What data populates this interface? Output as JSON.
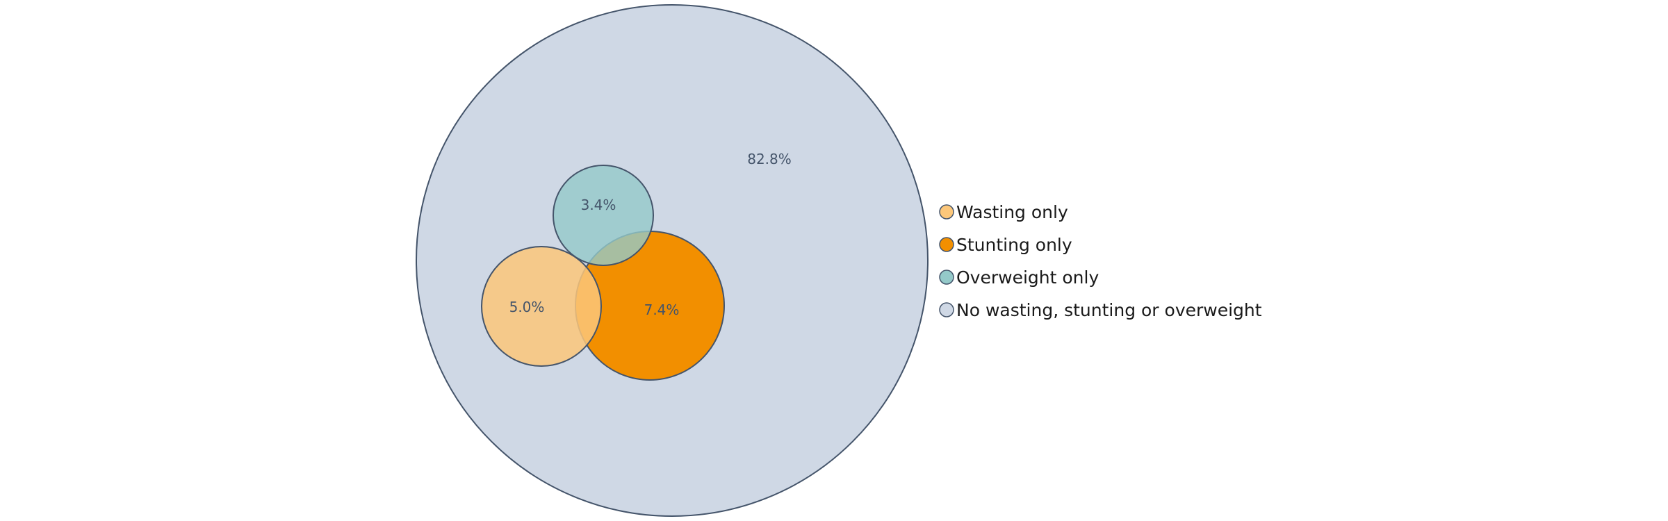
{
  "diagram": {
    "regions": {
      "none": {
        "label": "82.8%",
        "fill": "#cfd8e5"
      },
      "overweight": {
        "label": "3.4%",
        "fill": "#94c9c9"
      },
      "wasting": {
        "label": "5.0%",
        "fill": "#fcc77a"
      },
      "stunting": {
        "label": "7.4%",
        "fill": "#f28f00"
      }
    },
    "stroke": "#44546a",
    "legend": [
      {
        "label": "Wasting only",
        "color": "#fcc77a"
      },
      {
        "label": "Stunting only",
        "color": "#f28f00"
      },
      {
        "label": "Overweight only",
        "color": "#94c9c9"
      },
      {
        "label": "No wasting, stunting or overweight",
        "color": "#cfd8e5"
      }
    ]
  }
}
